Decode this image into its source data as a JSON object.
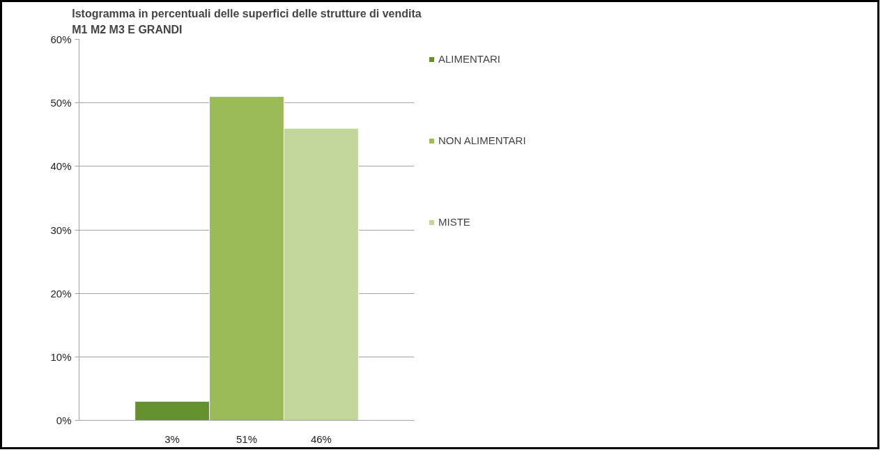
{
  "chart_data": {
    "type": "bar",
    "title": "Istogramma in percentuali delle superfici delle strutture di vendita\nM1 M2 M3 E GRANDI",
    "categories": [
      null
    ],
    "series": [
      {
        "name": "ALIMENTARI",
        "color": "#64912e",
        "values": [
          3
        ],
        "value_labels": [
          "3%"
        ]
      },
      {
        "name": "NON ALIMENTARI",
        "color": "#9bbb59",
        "values": [
          51
        ],
        "value_labels": [
          "51%"
        ]
      },
      {
        "name": "MISTE",
        "color": "#c3d69b",
        "values": [
          46
        ],
        "value_labels": [
          "46%"
        ]
      }
    ],
    "ylim": [
      0,
      60
    ],
    "yticks": [
      {
        "value": 0,
        "label": "0%"
      },
      {
        "value": 10,
        "label": "10%"
      },
      {
        "value": 20,
        "label": "20%"
      },
      {
        "value": 30,
        "label": "30%"
      },
      {
        "value": 40,
        "label": "40%"
      },
      {
        "value": 50,
        "label": "50%"
      },
      {
        "value": 60,
        "label": "60%"
      }
    ],
    "grid": "y",
    "legend": "right"
  }
}
